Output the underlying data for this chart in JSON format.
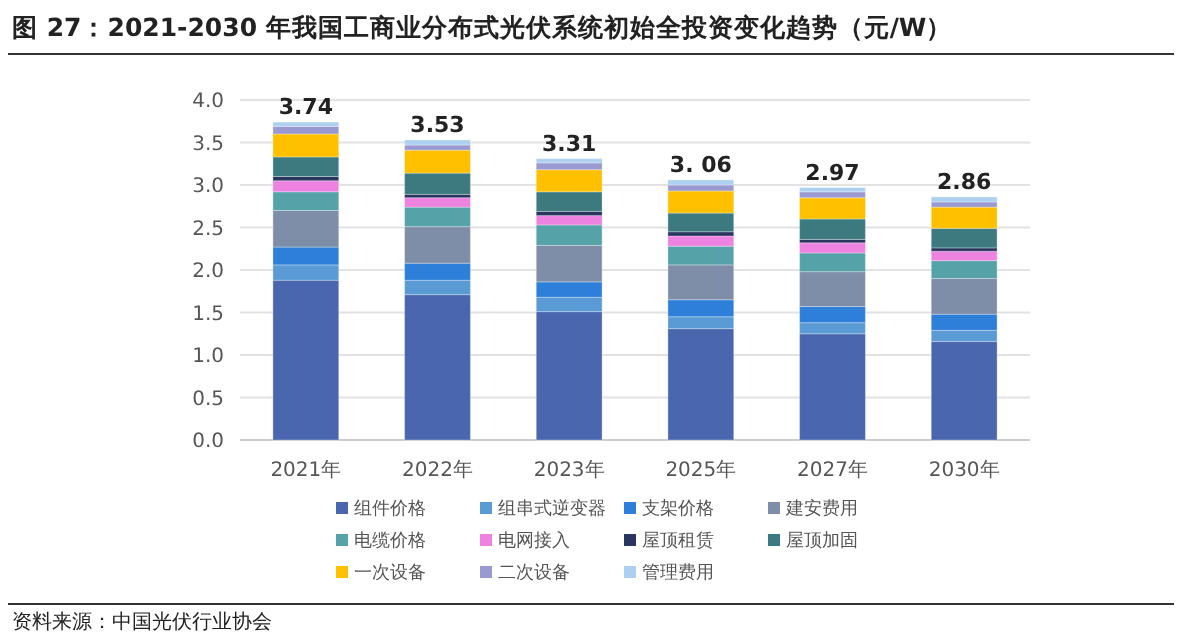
{
  "chart_data": {
    "type": "bar",
    "stacked": true,
    "title": "图 27：2021-2030 年我国工商业分布式光伏系统初始全投资变化趋势（元/W）",
    "annotations": [
      "资料来源：中国光伏行业协会"
    ],
    "categories": [
      "2021年",
      "2022年",
      "2023年",
      "2025年",
      "2027年",
      "2030年"
    ],
    "series": [
      {
        "name": "组件价格",
        "color": "#4a66ae",
        "values": [
          1.88,
          1.71,
          1.51,
          1.31,
          1.25,
          1.16
        ]
      },
      {
        "name": "组串式逆变器",
        "color": "#5b9bd5",
        "values": [
          0.18,
          0.17,
          0.17,
          0.14,
          0.13,
          0.13
        ]
      },
      {
        "name": "支架价格",
        "color": "#2e7fd9",
        "values": [
          0.21,
          0.2,
          0.18,
          0.2,
          0.19,
          0.19
        ]
      },
      {
        "name": "建安费用",
        "color": "#7f8ea8",
        "values": [
          0.43,
          0.43,
          0.43,
          0.41,
          0.41,
          0.42
        ]
      },
      {
        "name": "电缆价格",
        "color": "#55a3a8",
        "values": [
          0.22,
          0.23,
          0.24,
          0.22,
          0.22,
          0.21
        ]
      },
      {
        "name": "电网接入",
        "color": "#ee82e0",
        "values": [
          0.13,
          0.11,
          0.11,
          0.12,
          0.12,
          0.11
        ]
      },
      {
        "name": "屋顶租赁",
        "color": "#2a3560",
        "values": [
          0.05,
          0.04,
          0.05,
          0.05,
          0.04,
          0.04
        ]
      },
      {
        "name": "屋顶加固",
        "color": "#3d7a80",
        "values": [
          0.23,
          0.25,
          0.23,
          0.22,
          0.24,
          0.23
        ]
      },
      {
        "name": "一次设备",
        "color": "#ffc000",
        "values": [
          0.27,
          0.27,
          0.26,
          0.26,
          0.25,
          0.25
        ]
      },
      {
        "name": "二次设备",
        "color": "#9a9ad0",
        "values": [
          0.09,
          0.06,
          0.08,
          0.07,
          0.07,
          0.06
        ]
      },
      {
        "name": "管理费用",
        "color": "#aed0f0",
        "values": [
          0.05,
          0.06,
          0.05,
          0.06,
          0.05,
          0.06
        ]
      }
    ],
    "totals": [
      "3.74",
      "3.53",
      "3.31",
      "3. 06",
      "2.97",
      "2.86"
    ],
    "ylim": [
      0,
      4.0
    ],
    "yticks": [
      {
        "value": 0,
        "label": "0.0"
      },
      {
        "value": 0.5,
        "label": "0.5"
      },
      {
        "value": 1,
        "label": "1.0"
      },
      {
        "value": 1.5,
        "label": "1.5"
      },
      {
        "value": 2,
        "label": "2.0"
      },
      {
        "value": 2.5,
        "label": "2.5"
      },
      {
        "value": 3,
        "label": "3.0"
      },
      {
        "value": 3.5,
        "label": "3.5"
      },
      {
        "value": 4,
        "label": "4.0"
      }
    ],
    "grid": "y",
    "legend": "bottom"
  }
}
